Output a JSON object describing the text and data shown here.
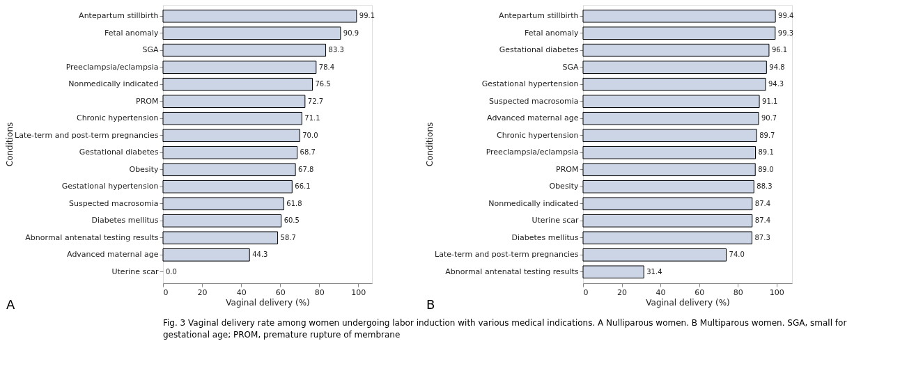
{
  "chart_data": [
    {
      "type": "bar",
      "orientation": "horizontal",
      "xlabel": "Vaginal delivery (%)",
      "ylabel": "Conditions",
      "data_labels": true,
      "grid": false,
      "xlim": [
        0,
        107
      ],
      "xticks": [
        0,
        20,
        40,
        60,
        80,
        100
      ],
      "categories": [
        "Antepartum stillbirth",
        "Fetal anomaly",
        "SGA",
        "Preeclampsia/eclampsia",
        "Nonmedically indicated",
        "PROM",
        "Chronic hypertension",
        "Late-term and post-term pregnancies",
        "Gestational diabetes",
        "Obesity",
        "Gestational hypertension",
        "Suspected macrosomia",
        "Diabetes mellitus",
        "Abnormal antenatal testing results",
        "Advanced maternal age",
        "Uterine scar"
      ],
      "series": [
        {
          "color": "#cbd5e5",
          "values": [
            99.1,
            90.9,
            83.3,
            78.4,
            76.5,
            72.7,
            71.1,
            70.0,
            68.7,
            67.8,
            66.1,
            61.8,
            60.5,
            58.7,
            44.3,
            0.0
          ],
          "value_labels": [
            "99.1",
            "90.9",
            "83.3",
            "78.4",
            "76.5",
            "72.7",
            "71.1",
            "70.0",
            "68.7",
            "67.8",
            "66.1",
            "61.8",
            "60.5",
            "58.7",
            "44.3",
            "0.0"
          ]
        }
      ],
      "annotations": [
        "A",
        "Fig. 3  Vaginal delivery rate among women undergoing labor induction with various medical indications. A Nulliparous women. B Multiparous women. SGA, small for gestational age; PROM, premature rupture of membrane"
      ]
    },
    {
      "type": "bar",
      "orientation": "horizontal",
      "xlabel": "Vaginal delivery (%)",
      "ylabel": "Conditions",
      "data_labels": true,
      "grid": false,
      "xlim": [
        0,
        108
      ],
      "xticks": [
        0,
        20,
        40,
        60,
        80,
        100
      ],
      "categories": [
        "Antepartum stillbirth",
        "Fetal anomaly",
        "Gestational diabetes",
        "SGA",
        "Gestational hypertension",
        "Suspected macrosomia",
        "Advanced maternal age",
        "Chronic hypertension",
        "Preeclampsia/eclampsia",
        "PROM",
        "Obesity",
        "Nonmedically indicated",
        "Uterine scar",
        "Diabetes mellitus",
        "Late-term and post-term pregnancies",
        "Abnormal antenatal testing results"
      ],
      "series": [
        {
          "color": "#cbd5e5",
          "values": [
            99.4,
            99.3,
            96.1,
            94.8,
            94.3,
            91.1,
            90.7,
            89.7,
            89.1,
            89.0,
            88.3,
            87.4,
            87.4,
            87.3,
            74.0,
            31.4
          ],
          "value_labels": [
            "99.4",
            "99.3",
            "96.1",
            "94.8",
            "94.3",
            "91.1",
            "90.7",
            "89.7",
            "89.1",
            "89.0",
            "88.3",
            "87.4",
            "87.4",
            "87.3",
            "74.0",
            "31.4"
          ]
        }
      ],
      "annotations": [
        "B"
      ]
    }
  ]
}
